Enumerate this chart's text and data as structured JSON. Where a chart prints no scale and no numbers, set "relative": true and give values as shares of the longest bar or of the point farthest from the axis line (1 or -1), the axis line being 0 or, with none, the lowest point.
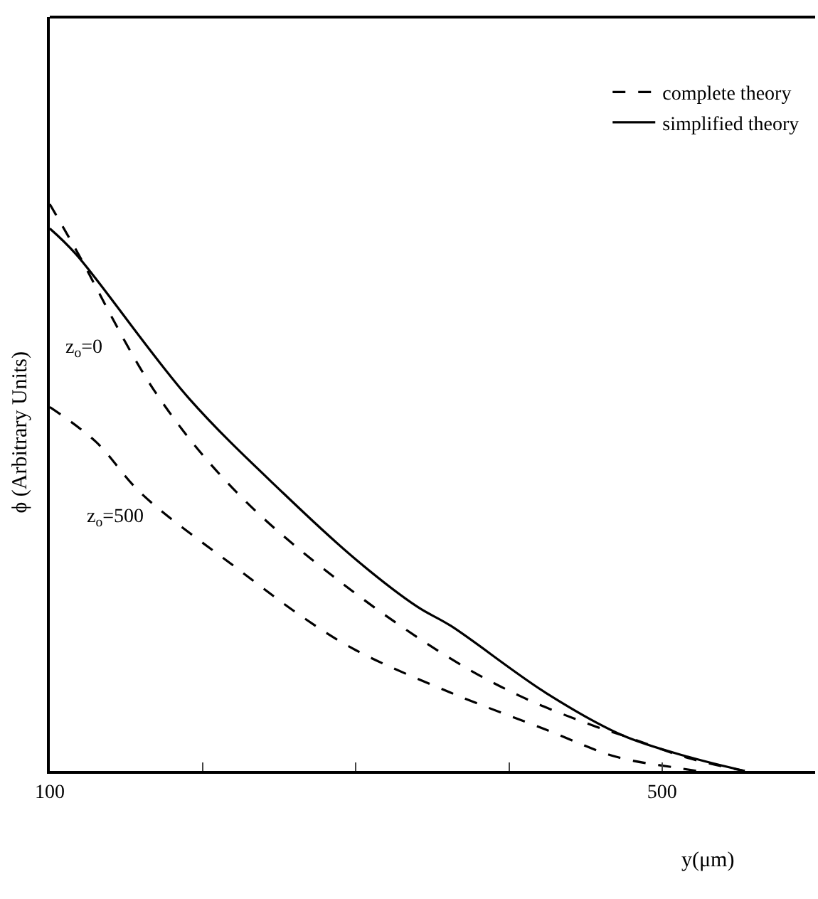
{
  "chart_data": {
    "type": "line",
    "relative": true,
    "xlabel": "y(μm)",
    "ylabel": "ϕ (Arbitrary Units)",
    "xlim": [
      100,
      600
    ],
    "xticks": [
      100,
      {
        "value": 200,
        "label": null
      },
      {
        "value": 300,
        "label": null
      },
      {
        "value": 400,
        "label": null
      },
      500
    ],
    "legend": "top right",
    "marker": "none",
    "series": [
      {
        "name": "complete theory",
        "color": "#000000",
        "line_style": "dashed",
        "x": [
          100,
          117,
          170,
          223,
          291,
          362,
          409,
          455,
          474,
          517,
          554
        ],
        "values": [
          1.0,
          0.92,
          0.664,
          0.489,
          0.331,
          0.198,
          0.13,
          0.08,
          0.063,
          0.023,
          0
        ]
      },
      {
        "color": "#000000",
        "line_style": "dashed",
        "x": [
          100,
          130,
          160,
          223,
          266,
          300,
          362,
          424,
          470,
          511,
          523
        ],
        "values": [
          0.642,
          0.581,
          0.489,
          0.356,
          0.27,
          0.213,
          0.138,
          0.073,
          0.025,
          0.005,
          0
        ]
      },
      {
        "name": "simplified theory",
        "color": "#000000",
        "line_style": "solid",
        "x": [
          100,
          117,
          191,
          253,
          300,
          340,
          362,
          424,
          474,
          517,
          554
        ],
        "values": [
          0.957,
          0.912,
          0.657,
          0.489,
          0.373,
          0.29,
          0.256,
          0.138,
          0.063,
          0.025,
          0
        ]
      }
    ],
    "annotations": [
      "z$_{o}$=0",
      "z$_{o}$=500"
    ]
  }
}
